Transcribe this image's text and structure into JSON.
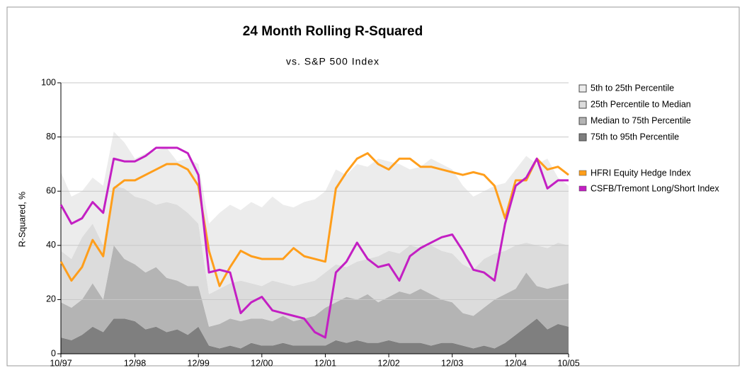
{
  "chart_data": {
    "type": "line",
    "title": "24 Month Rolling R-Squared",
    "subtitle": "vs. S&P 500 Index",
    "y_label": "R-Squared, %",
    "x": [
      0,
      2,
      4,
      6,
      8,
      10,
      12,
      14,
      16,
      18,
      20,
      22,
      24,
      26,
      28,
      30,
      32,
      34,
      36,
      38,
      40,
      42,
      44,
      46,
      48,
      50,
      52,
      54,
      56,
      58,
      60,
      62,
      64,
      66,
      68,
      70,
      72,
      74,
      76,
      78,
      80,
      82,
      84,
      86,
      88,
      90,
      92,
      94,
      96
    ],
    "xlim": [
      0,
      96
    ],
    "xticks": [
      {
        "value": 0,
        "label": "10/97"
      },
      {
        "value": 14,
        "label": "12/98"
      },
      {
        "value": 26,
        "label": "12/99"
      },
      {
        "value": 38,
        "label": "12/00"
      },
      {
        "value": 50,
        "label": "12/01"
      },
      {
        "value": 62,
        "label": "12/02"
      },
      {
        "value": 74,
        "label": "12/03"
      },
      {
        "value": 86,
        "label": "12/04"
      },
      {
        "value": 96,
        "label": "10/05"
      }
    ],
    "ylim": [
      0,
      100
    ],
    "yticks": [
      0,
      20,
      40,
      60,
      80,
      100
    ],
    "grid": true,
    "legend": "right",
    "series": [
      {
        "name": "5th to 25th Percentile",
        "type": "area",
        "color": "#ececec",
        "values": [
          29,
          23,
          17,
          17,
          22,
          20,
          17,
          14,
          17,
          20,
          20,
          16,
          20,
          22,
          26,
          28,
          29,
          26,
          30,
          29,
          31,
          29,
          29,
          30,
          30,
          30,
          35,
          34,
          36,
          34,
          36,
          33,
          33,
          28,
          30,
          32,
          32,
          31,
          29,
          27,
          25,
          25,
          25,
          28,
          32,
          30,
          33,
          24,
          22
        ]
      },
      {
        "name": "25th Percentile to Median",
        "type": "area",
        "color": "#dcdcdc",
        "values": [
          19,
          18,
          23,
          22,
          20,
          22,
          26,
          25,
          27,
          23,
          28,
          28,
          27,
          23,
          12,
          13,
          13,
          15,
          13,
          12,
          15,
          12,
          13,
          13,
          13,
          13,
          14,
          11,
          14,
          13,
          17,
          17,
          14,
          18,
          15,
          18,
          18,
          18,
          18,
          17,
          18,
          17,
          16,
          16,
          11,
          15,
          15,
          16,
          14
        ]
      },
      {
        "name": "Median to 75th Percentile",
        "type": "area",
        "color": "#b4b4b4",
        "values": [
          13,
          12,
          13,
          16,
          12,
          27,
          22,
          21,
          21,
          22,
          20,
          18,
          18,
          15,
          7,
          9,
          10,
          10,
          9,
          10,
          9,
          10,
          9,
          10,
          11,
          14,
          14,
          17,
          15,
          18,
          15,
          16,
          19,
          18,
          20,
          19,
          16,
          15,
          12,
          12,
          14,
          18,
          18,
          17,
          20,
          12,
          15,
          14,
          16
        ]
      },
      {
        "name": "75th to 95th Percentile",
        "type": "area",
        "color": "#7f7f7f",
        "values": [
          6,
          5,
          7,
          10,
          8,
          13,
          13,
          12,
          9,
          10,
          8,
          9,
          7,
          10,
          3,
          2,
          3,
          2,
          4,
          3,
          3,
          4,
          3,
          3,
          3,
          3,
          5,
          4,
          5,
          4,
          4,
          5,
          4,
          4,
          4,
          3,
          4,
          4,
          3,
          2,
          3,
          2,
          4,
          7,
          10,
          13,
          9,
          11,
          10
        ]
      },
      {
        "name": "HFRI Equity Hedge Index",
        "type": "line",
        "color": "#ff9e1b",
        "values": [
          34,
          27,
          32,
          42,
          36,
          61,
          64,
          64,
          66,
          68,
          70,
          70,
          68,
          62,
          38,
          25,
          32,
          38,
          36,
          35,
          35,
          35,
          39,
          36,
          35,
          34,
          61,
          67,
          72,
          74,
          70,
          68,
          72,
          72,
          69,
          69,
          68,
          67,
          66,
          67,
          66,
          62,
          50,
          64,
          64,
          72,
          68,
          69,
          66
        ]
      },
      {
        "name": "CSFB/Tremont Long/Short Index",
        "type": "line",
        "color": "#c31fc3",
        "values": [
          55,
          48,
          50,
          56,
          52,
          72,
          71,
          71,
          73,
          76,
          76,
          76,
          74,
          66,
          30,
          31,
          30,
          15,
          19,
          21,
          16,
          15,
          14,
          13,
          8,
          6,
          30,
          34,
          41,
          35,
          32,
          33,
          27,
          36,
          39,
          41,
          43,
          44,
          38,
          31,
          30,
          27,
          48,
          62,
          65,
          72,
          61,
          64,
          64
        ]
      }
    ]
  }
}
